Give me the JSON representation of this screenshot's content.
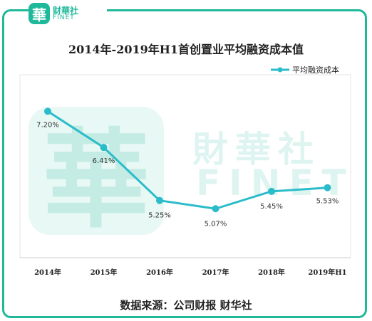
{
  "logo": {
    "mark": "華",
    "cn": "财華社",
    "en": "FINET"
  },
  "watermark": {
    "mark": "華",
    "cn": "財華社",
    "en": "FINET"
  },
  "colors": {
    "accent": "#1fb89a",
    "line": "#2bbcca",
    "axis": "#cccccc"
  },
  "chart_data": {
    "type": "line",
    "title": "2014年-2019年H1首创置业平均融资成本值",
    "categories": [
      "2014年",
      "2015年",
      "2016年",
      "2017年",
      "2018年",
      "2019年H1"
    ],
    "series": [
      {
        "name": "平均融资成本",
        "values": [
          7.2,
          6.41,
          5.25,
          5.07,
          5.45,
          5.53
        ],
        "labels": [
          "7.20%",
          "6.41%",
          "5.25%",
          "5.07%",
          "5.45%",
          "5.53%"
        ]
      }
    ],
    "ylim": [
      4.0,
      8.0
    ],
    "grid": false,
    "legend": "top-right"
  },
  "source": "数据来源：公司财报   财华社"
}
